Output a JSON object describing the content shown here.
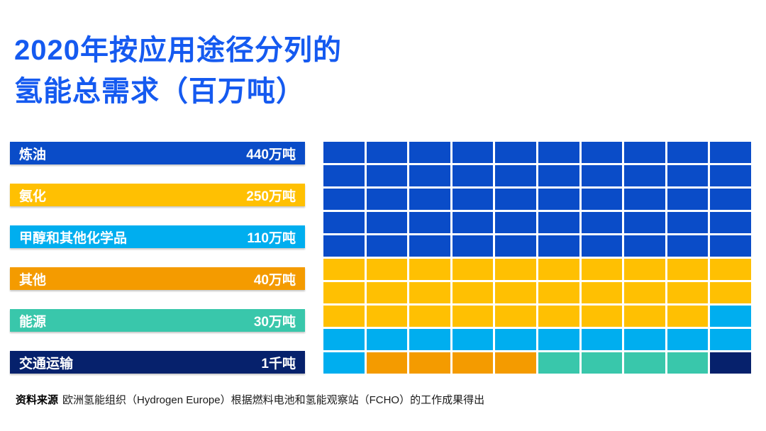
{
  "palette": {
    "B": "#0A4CC8",
    "Y": "#FFC002",
    "C": "#00AEEF",
    "O": "#F49B00",
    "T": "#39C7AB",
    "N": "#06216C",
    "title_blue": "#155AF0",
    "background": "#FFFFFF"
  },
  "title": {
    "line1": "2020年按应用途径分列的",
    "line2": "氢能总需求（百万吨）"
  },
  "legend": {
    "items": [
      {
        "label": "炼油",
        "value": "440万吨",
        "color_key": "B"
      },
      {
        "label": "氨化",
        "value": "250万吨",
        "color_key": "Y"
      },
      {
        "label": "甲醇和其他化学品",
        "value": "110万吨",
        "color_key": "C"
      },
      {
        "label": "其他",
        "value": "40万吨",
        "color_key": "O"
      },
      {
        "label": "能源",
        "value": "30万吨",
        "color_key": "T"
      },
      {
        "label": "交通运输",
        "value": "1千吨",
        "color_key": "N"
      }
    ]
  },
  "chart_data": {
    "type": "heatmap",
    "subtype": "waffle",
    "title": "2020年按应用途径分列的氢能总需求（百万吨）",
    "grid": {
      "rows": 10,
      "cols": 10,
      "total_cells": 100
    },
    "legend_position": "left",
    "series": [
      {
        "name": "炼油",
        "value_label": "440万吨",
        "value_wan_tons": 440,
        "cells": 50,
        "color": "#0A4CC8"
      },
      {
        "name": "氨化",
        "value_label": "250万吨",
        "value_wan_tons": 250,
        "cells": 29,
        "color": "#FFC002"
      },
      {
        "name": "甲醇和其他化学品",
        "value_label": "110万吨",
        "value_wan_tons": 110,
        "cells": 12,
        "color": "#00AEEF"
      },
      {
        "name": "其他",
        "value_label": "40万吨",
        "value_wan_tons": 40,
        "cells": 4,
        "color": "#F49B00"
      },
      {
        "name": "能源",
        "value_label": "30万吨",
        "value_wan_tons": 30,
        "cells": 4,
        "color": "#39C7AB"
      },
      {
        "name": "交通运输",
        "value_label": "1千吨",
        "value_wan_tons": 0.1,
        "cells": 1,
        "color": "#06216C"
      }
    ],
    "cell_matrix": [
      "BBBBBBBBBB",
      "BBBBBBBBBB",
      "BBBBBBBBBB",
      "BBBBBBBBBB",
      "BBBBBBBBBB",
      "YYYYYYYYYY",
      "YYYYYYYYYY",
      "YYYYYYYYYC",
      "CCCCCCCCCC",
      "COOOOTTTTN"
    ]
  },
  "source": {
    "label": "资料来源",
    "text": "欧洲氢能组织（Hydrogen Europe）根据燃料电池和氢能观察站（FCHO）的工作成果得出"
  }
}
